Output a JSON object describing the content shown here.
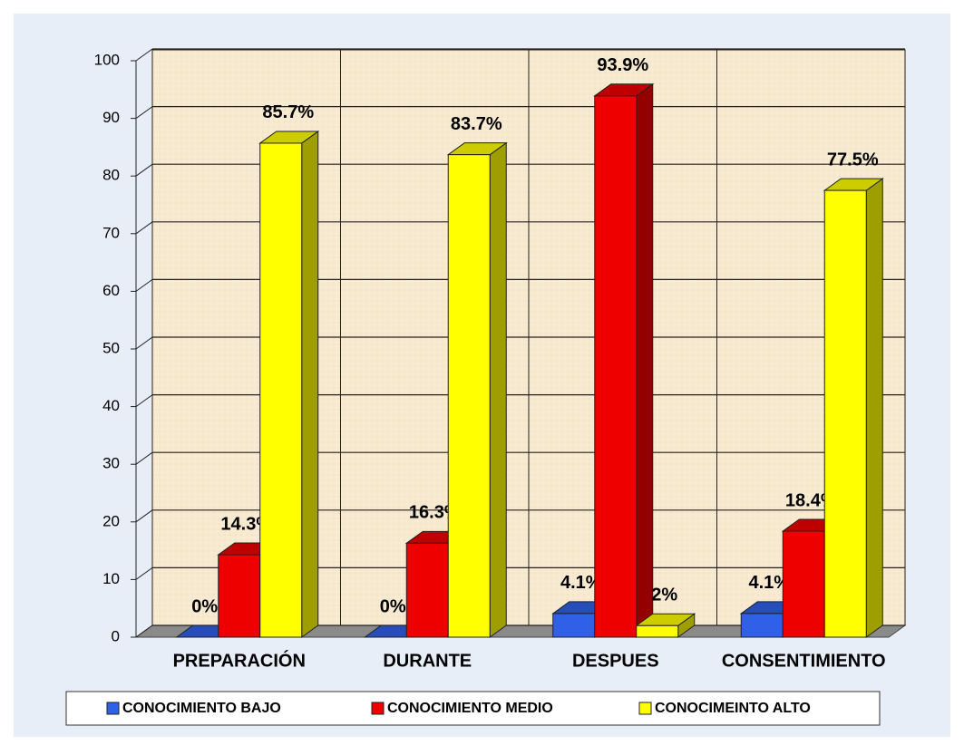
{
  "chart_data": {
    "type": "bar3d",
    "categories": [
      "PREPARACIÓN",
      "DURANTE",
      "DESPUES",
      "CONSENTIMIENTO"
    ],
    "series": [
      {
        "name": "CONOCIMIENTO BAJO",
        "color": "#3060e8",
        "values": [
          0,
          0,
          4.1,
          4.1
        ],
        "value_labels": [
          "0%",
          "0%",
          "4.1%",
          "4.1%"
        ]
      },
      {
        "name": "CONOCIMIENTO MEDIO",
        "color": "#ee0000",
        "values": [
          14.3,
          16.3,
          93.9,
          18.4
        ],
        "value_labels": [
          "14.3%",
          "16.3%",
          "93.9%",
          "18.4%"
        ]
      },
      {
        "name": "CONOCIMEINTO ALTO",
        "color": "#ffff00",
        "values": [
          85.7,
          83.7,
          2,
          77.5
        ],
        "value_labels": [
          "85.7%",
          "83.7%",
          "2%",
          "77.5%"
        ]
      }
    ],
    "ylim": [
      0,
      100
    ],
    "yticks": [
      0,
      10,
      20,
      30,
      40,
      50,
      60,
      70,
      80,
      90,
      100
    ],
    "grid": true
  }
}
